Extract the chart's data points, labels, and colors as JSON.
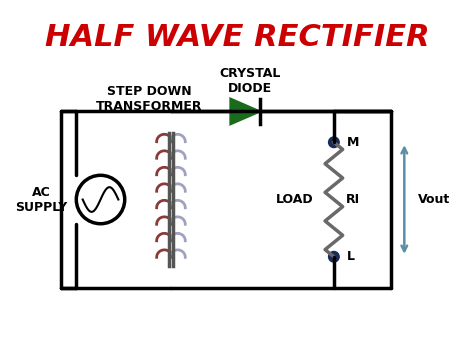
{
  "title": "HALF WAVE RECTIFIER",
  "title_color": "#CC0000",
  "title_fontsize": 22,
  "title_style": "italic",
  "title_weight": "bold",
  "bg_color": "#FFFFFF",
  "line_color": "#000000",
  "line_width": 2.5,
  "transformer_coil_color_left": "#8B3A3A",
  "transformer_coil_color_right": "#A0A0C0",
  "diode_color": "#1A6B1A",
  "dot_color": "#1A2B5A",
  "resistor_color": "#696969",
  "vout_arrow_color": "#5B8FA8",
  "labels": {
    "ac_supply": "AC\nSUPPLY",
    "step_down": "STEP DOWN\nTRANSFORMER",
    "crystal_diode": "CRYSTAL\nDIODE",
    "load": "LOAD",
    "ri": "RI",
    "m_node": "M",
    "l_node": "L",
    "vout": "Vout"
  },
  "font_size_labels": 9,
  "font_size_nodes": 9
}
